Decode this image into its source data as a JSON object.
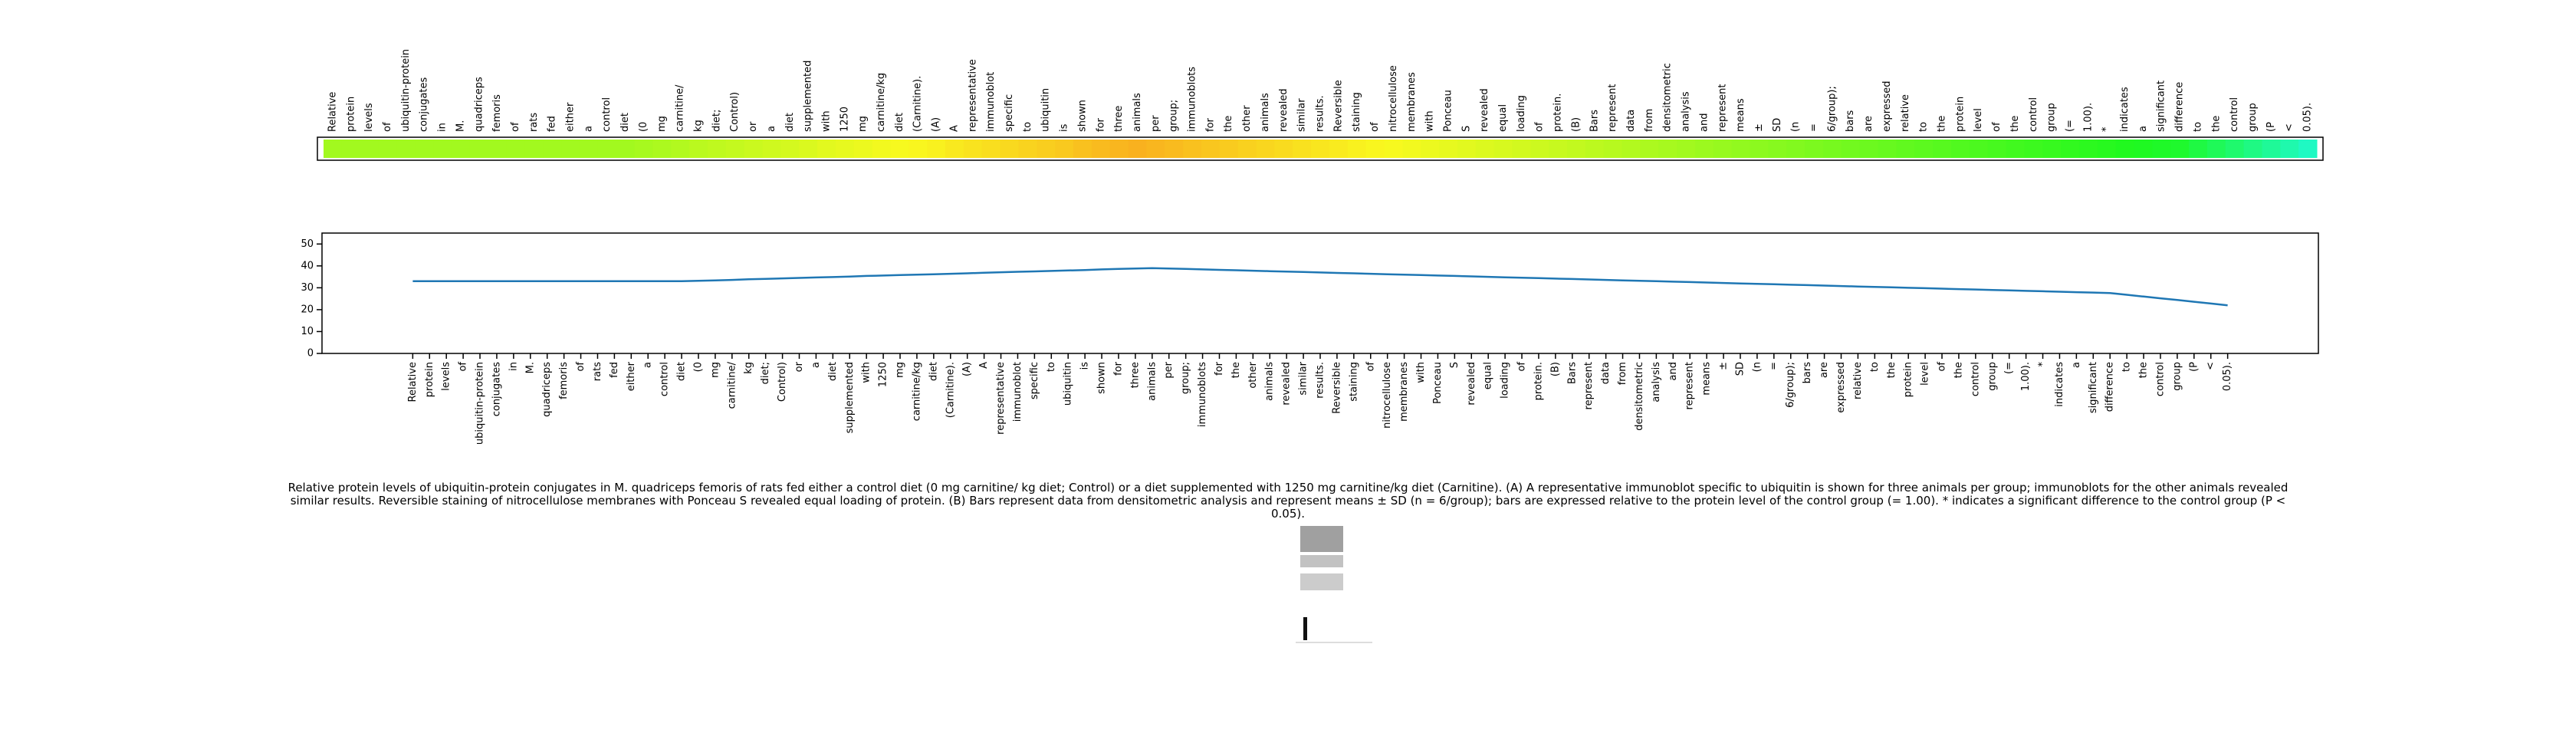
{
  "chart_data": [
    {
      "type": "heatmap",
      "categories": [
        "Relative",
        "protein",
        "levels",
        "of",
        "ubiquitin-protein",
        "conjugates",
        "in",
        "M.",
        "quadriceps",
        "femoris",
        "of",
        "rats",
        "fed",
        "either",
        "a",
        "control",
        "diet",
        "(0",
        "mg",
        "carnitine/",
        "kg",
        "diet;",
        "Control)",
        "or",
        "a",
        "diet",
        "supplemented",
        "with",
        "1250",
        "mg",
        "carnitine/kg",
        "diet",
        "(Carnitine).",
        "(A)",
        "A",
        "representative",
        "immunoblot",
        "specific",
        "to",
        "ubiquitin",
        "is",
        "shown",
        "for",
        "three",
        "animals",
        "per",
        "group;",
        "immunoblots",
        "for",
        "the",
        "other",
        "animals",
        "revealed",
        "similar",
        "results.",
        "Reversible",
        "staining",
        "of",
        "nitrocellulose",
        "membranes",
        "with",
        "Ponceau",
        "S",
        "revealed",
        "equal",
        "loading",
        "of",
        "protein.",
        "(B)",
        "Bars",
        "represent",
        "data",
        "from",
        "densitometric",
        "analysis",
        "and",
        "represent",
        "means",
        "±",
        "SD",
        "(n",
        "=",
        "6/group);",
        "bars",
        "are",
        "expressed",
        "relative",
        "to",
        "the",
        "protein",
        "level",
        "of",
        "the",
        "control",
        "group",
        "(=",
        "1.00).",
        "*",
        "indicates",
        "a",
        "significant",
        "difference",
        "to",
        "the",
        "control",
        "group",
        "(P",
        "<",
        "0.05)."
      ],
      "values": [
        33,
        33,
        33,
        33,
        33,
        33,
        33,
        33,
        33,
        33,
        33,
        33,
        33,
        33,
        33,
        33,
        33,
        33.2,
        33.4,
        33.6,
        33.9,
        34.1,
        34.3,
        34.5,
        34.7,
        34.9,
        35.1,
        35.4,
        35.6,
        35.8,
        36.0,
        36.2,
        36.4,
        36.6,
        36.9,
        37.1,
        37.3,
        37.5,
        37.7,
        37.9,
        38.1,
        38.4,
        38.6,
        38.8,
        39.0,
        38.8,
        38.6,
        38.4,
        38.2,
        38.0,
        37.8,
        37.6,
        37.4,
        37.2,
        37.0,
        36.8,
        36.6,
        36.4,
        36.2,
        36.0,
        35.8,
        35.6,
        35.4,
        35.2,
        35.0,
        34.8,
        34.6,
        34.4,
        34.2,
        34.0,
        33.8,
        33.6,
        33.4,
        33.2,
        33.0,
        32.8,
        32.6,
        32.4,
        32.2,
        32.0,
        31.8,
        31.6,
        31.4,
        31.2,
        31.0,
        30.8,
        30.6,
        30.4,
        30.2,
        30.0,
        29.8,
        29.6,
        29.4,
        29.2,
        29.0,
        28.8,
        28.6,
        28.4,
        28.2,
        28.0,
        27.8,
        27.6,
        26.8,
        26.0,
        25.2,
        24.4,
        23.6,
        22.8,
        22.0
      ]
    },
    {
      "type": "line",
      "color": "#1f77b4",
      "categories": [
        "Relative",
        "protein",
        "levels",
        "of",
        "ubiquitin-protein",
        "conjugates",
        "in",
        "M.",
        "quadriceps",
        "femoris",
        "of",
        "rats",
        "fed",
        "either",
        "a",
        "control",
        "diet",
        "(0",
        "mg",
        "carnitine/",
        "kg",
        "diet;",
        "Control)",
        "or",
        "a",
        "diet",
        "supplemented",
        "with",
        "1250",
        "mg",
        "carnitine/kg",
        "diet",
        "(Carnitine).",
        "(A)",
        "A",
        "representative",
        "immunoblot",
        "specific",
        "to",
        "ubiquitin",
        "is",
        "shown",
        "for",
        "three",
        "animals",
        "per",
        "group;",
        "immunoblots",
        "for",
        "the",
        "other",
        "animals",
        "revealed",
        "similar",
        "results.",
        "Reversible",
        "staining",
        "of",
        "nitrocellulose",
        "membranes",
        "with",
        "Ponceau",
        "S",
        "revealed",
        "equal",
        "loading",
        "of",
        "protein.",
        "(B)",
        "Bars",
        "represent",
        "data",
        "from",
        "densitometric",
        "analysis",
        "and",
        "represent",
        "means",
        "±",
        "SD",
        "(n",
        "=",
        "6/group);",
        "bars",
        "are",
        "expressed",
        "relative",
        "to",
        "the",
        "protein",
        "level",
        "of",
        "the",
        "control",
        "group",
        "(=",
        "1.00).",
        "*",
        "indicates",
        "a",
        "significant",
        "difference",
        "to",
        "the",
        "control",
        "group",
        "(P",
        "<",
        "0.05)."
      ],
      "values": [
        33,
        33,
        33,
        33,
        33,
        33,
        33,
        33,
        33,
        33,
        33,
        33,
        33,
        33,
        33,
        33,
        33,
        33.2,
        33.4,
        33.6,
        33.9,
        34.1,
        34.3,
        34.5,
        34.7,
        34.9,
        35.1,
        35.4,
        35.6,
        35.8,
        36.0,
        36.2,
        36.4,
        36.6,
        36.9,
        37.1,
        37.3,
        37.5,
        37.7,
        37.9,
        38.1,
        38.4,
        38.6,
        38.8,
        39.0,
        38.8,
        38.6,
        38.4,
        38.2,
        38.0,
        37.8,
        37.6,
        37.4,
        37.2,
        37.0,
        36.8,
        36.6,
        36.4,
        36.2,
        36.0,
        35.8,
        35.6,
        35.4,
        35.2,
        35.0,
        34.8,
        34.6,
        34.4,
        34.2,
        34.0,
        33.8,
        33.6,
        33.4,
        33.2,
        33.0,
        32.8,
        32.6,
        32.4,
        32.2,
        32.0,
        31.8,
        31.6,
        31.4,
        31.2,
        31.0,
        30.8,
        30.6,
        30.4,
        30.2,
        30.0,
        29.8,
        29.6,
        29.4,
        29.2,
        29.0,
        28.8,
        28.6,
        28.4,
        28.2,
        28.0,
        27.8,
        27.6,
        26.8,
        26.0,
        25.2,
        24.4,
        23.6,
        22.8,
        22.0
      ],
      "ylim": [
        0,
        55
      ],
      "yticks": [
        0,
        10,
        20,
        30,
        40,
        50
      ]
    }
  ],
  "caption": "Relative protein levels of ubiquitin-protein conjugates in M. quadriceps femoris of rats fed either a control diet (0 mg carnitine/ kg diet; Control) or a diet supplemented with 1250 mg carnitine/kg diet (Carnitine). (A) A representative immunoblot specific to ubiquitin is shown for three animals per group; immunoblots for the other animals revealed similar results. Reversible staining of nitrocellulose membranes with Ponceau S revealed equal loading of protein. (B) Bars represent data from densitometric analysis and represent means ± SD (n = 6/group); bars are expressed relative to the protein level of the control group (= 1.00). * indicates a significant difference to the control group (P < 0.05)."
}
